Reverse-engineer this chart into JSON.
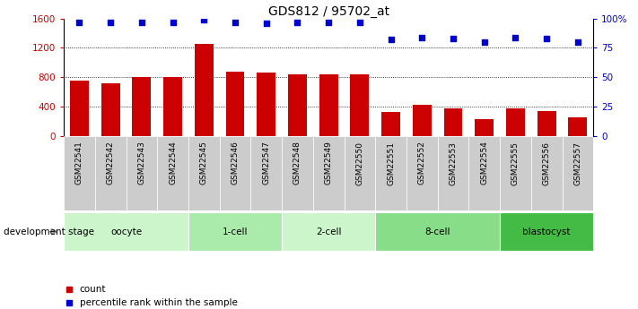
{
  "title": "GDS812 / 95702_at",
  "samples": [
    "GSM22541",
    "GSM22542",
    "GSM22543",
    "GSM22544",
    "GSM22545",
    "GSM22546",
    "GSM22547",
    "GSM22548",
    "GSM22549",
    "GSM22550",
    "GSM22551",
    "GSM22552",
    "GSM22553",
    "GSM22554",
    "GSM22555",
    "GSM22556",
    "GSM22557"
  ],
  "bar_values": [
    760,
    720,
    800,
    800,
    1260,
    880,
    860,
    845,
    840,
    835,
    330,
    420,
    370,
    230,
    380,
    345,
    250
  ],
  "dot_values": [
    97,
    97,
    97,
    97,
    99,
    97,
    96,
    97,
    97,
    97,
    82,
    84,
    83,
    80,
    84,
    83,
    80
  ],
  "bar_color": "#cc0000",
  "dot_color": "#0000cc",
  "ylim_left": [
    0,
    1600
  ],
  "ylim_right": [
    0,
    100
  ],
  "yticks_left": [
    0,
    400,
    800,
    1200,
    1600
  ],
  "ytick_labels_right": [
    "0",
    "25",
    "50",
    "75",
    "100%"
  ],
  "grid_values": [
    400,
    800,
    1200
  ],
  "stages": [
    {
      "label": "oocyte",
      "start": 0,
      "end": 4
    },
    {
      "label": "1-cell",
      "start": 4,
      "end": 7
    },
    {
      "label": "2-cell",
      "start": 7,
      "end": 10
    },
    {
      "label": "8-cell",
      "start": 10,
      "end": 14
    },
    {
      "label": "blastocyst",
      "start": 14,
      "end": 17
    }
  ],
  "stage_colors": [
    "#ccf5cc",
    "#aaeaaa",
    "#ccf5cc",
    "#88dd88",
    "#44bb44"
  ],
  "tick_label_color_left": "#cc0000",
  "tick_label_color_right": "#0000cc",
  "tick_bg_color": "#cccccc",
  "legend_bar_label": "count",
  "legend_dot_label": "percentile rank within the sample",
  "dev_stage_label": "development stage"
}
